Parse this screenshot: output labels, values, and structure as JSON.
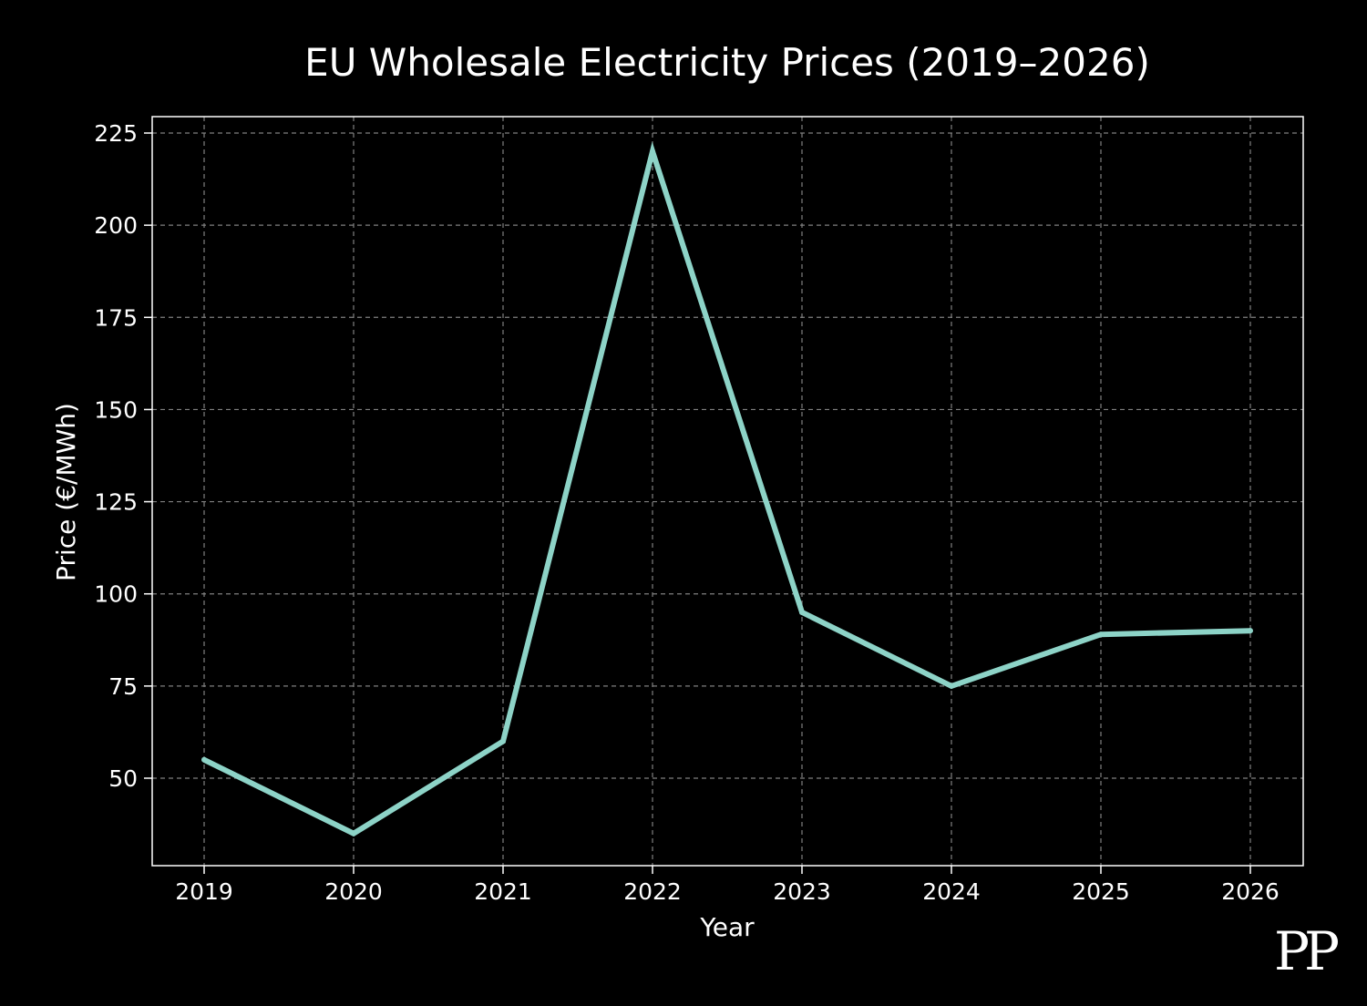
{
  "chart_data": {
    "type": "line",
    "title": "EU Wholesale Electricity Prices (2019–2026)",
    "xlabel": "Year",
    "ylabel": "Price (€/MWh)",
    "categories": [
      "2019",
      "2020",
      "2021",
      "2022",
      "2023",
      "2024",
      "2025",
      "2026"
    ],
    "series": [
      {
        "name": "Price",
        "values": [
          55,
          35,
          60,
          220,
          95,
          75,
          89,
          90
        ],
        "color": "#8dd3c7"
      }
    ],
    "yticks": [
      50,
      75,
      100,
      125,
      150,
      175,
      200,
      225
    ],
    "ylim": [
      21,
      225
    ],
    "grid": true,
    "legend": "none"
  },
  "colors": {
    "background": "#000000",
    "foreground": "#ffffff",
    "grid": "#808080",
    "line": "#8dd3c7"
  },
  "watermark": {
    "text": "PP"
  }
}
